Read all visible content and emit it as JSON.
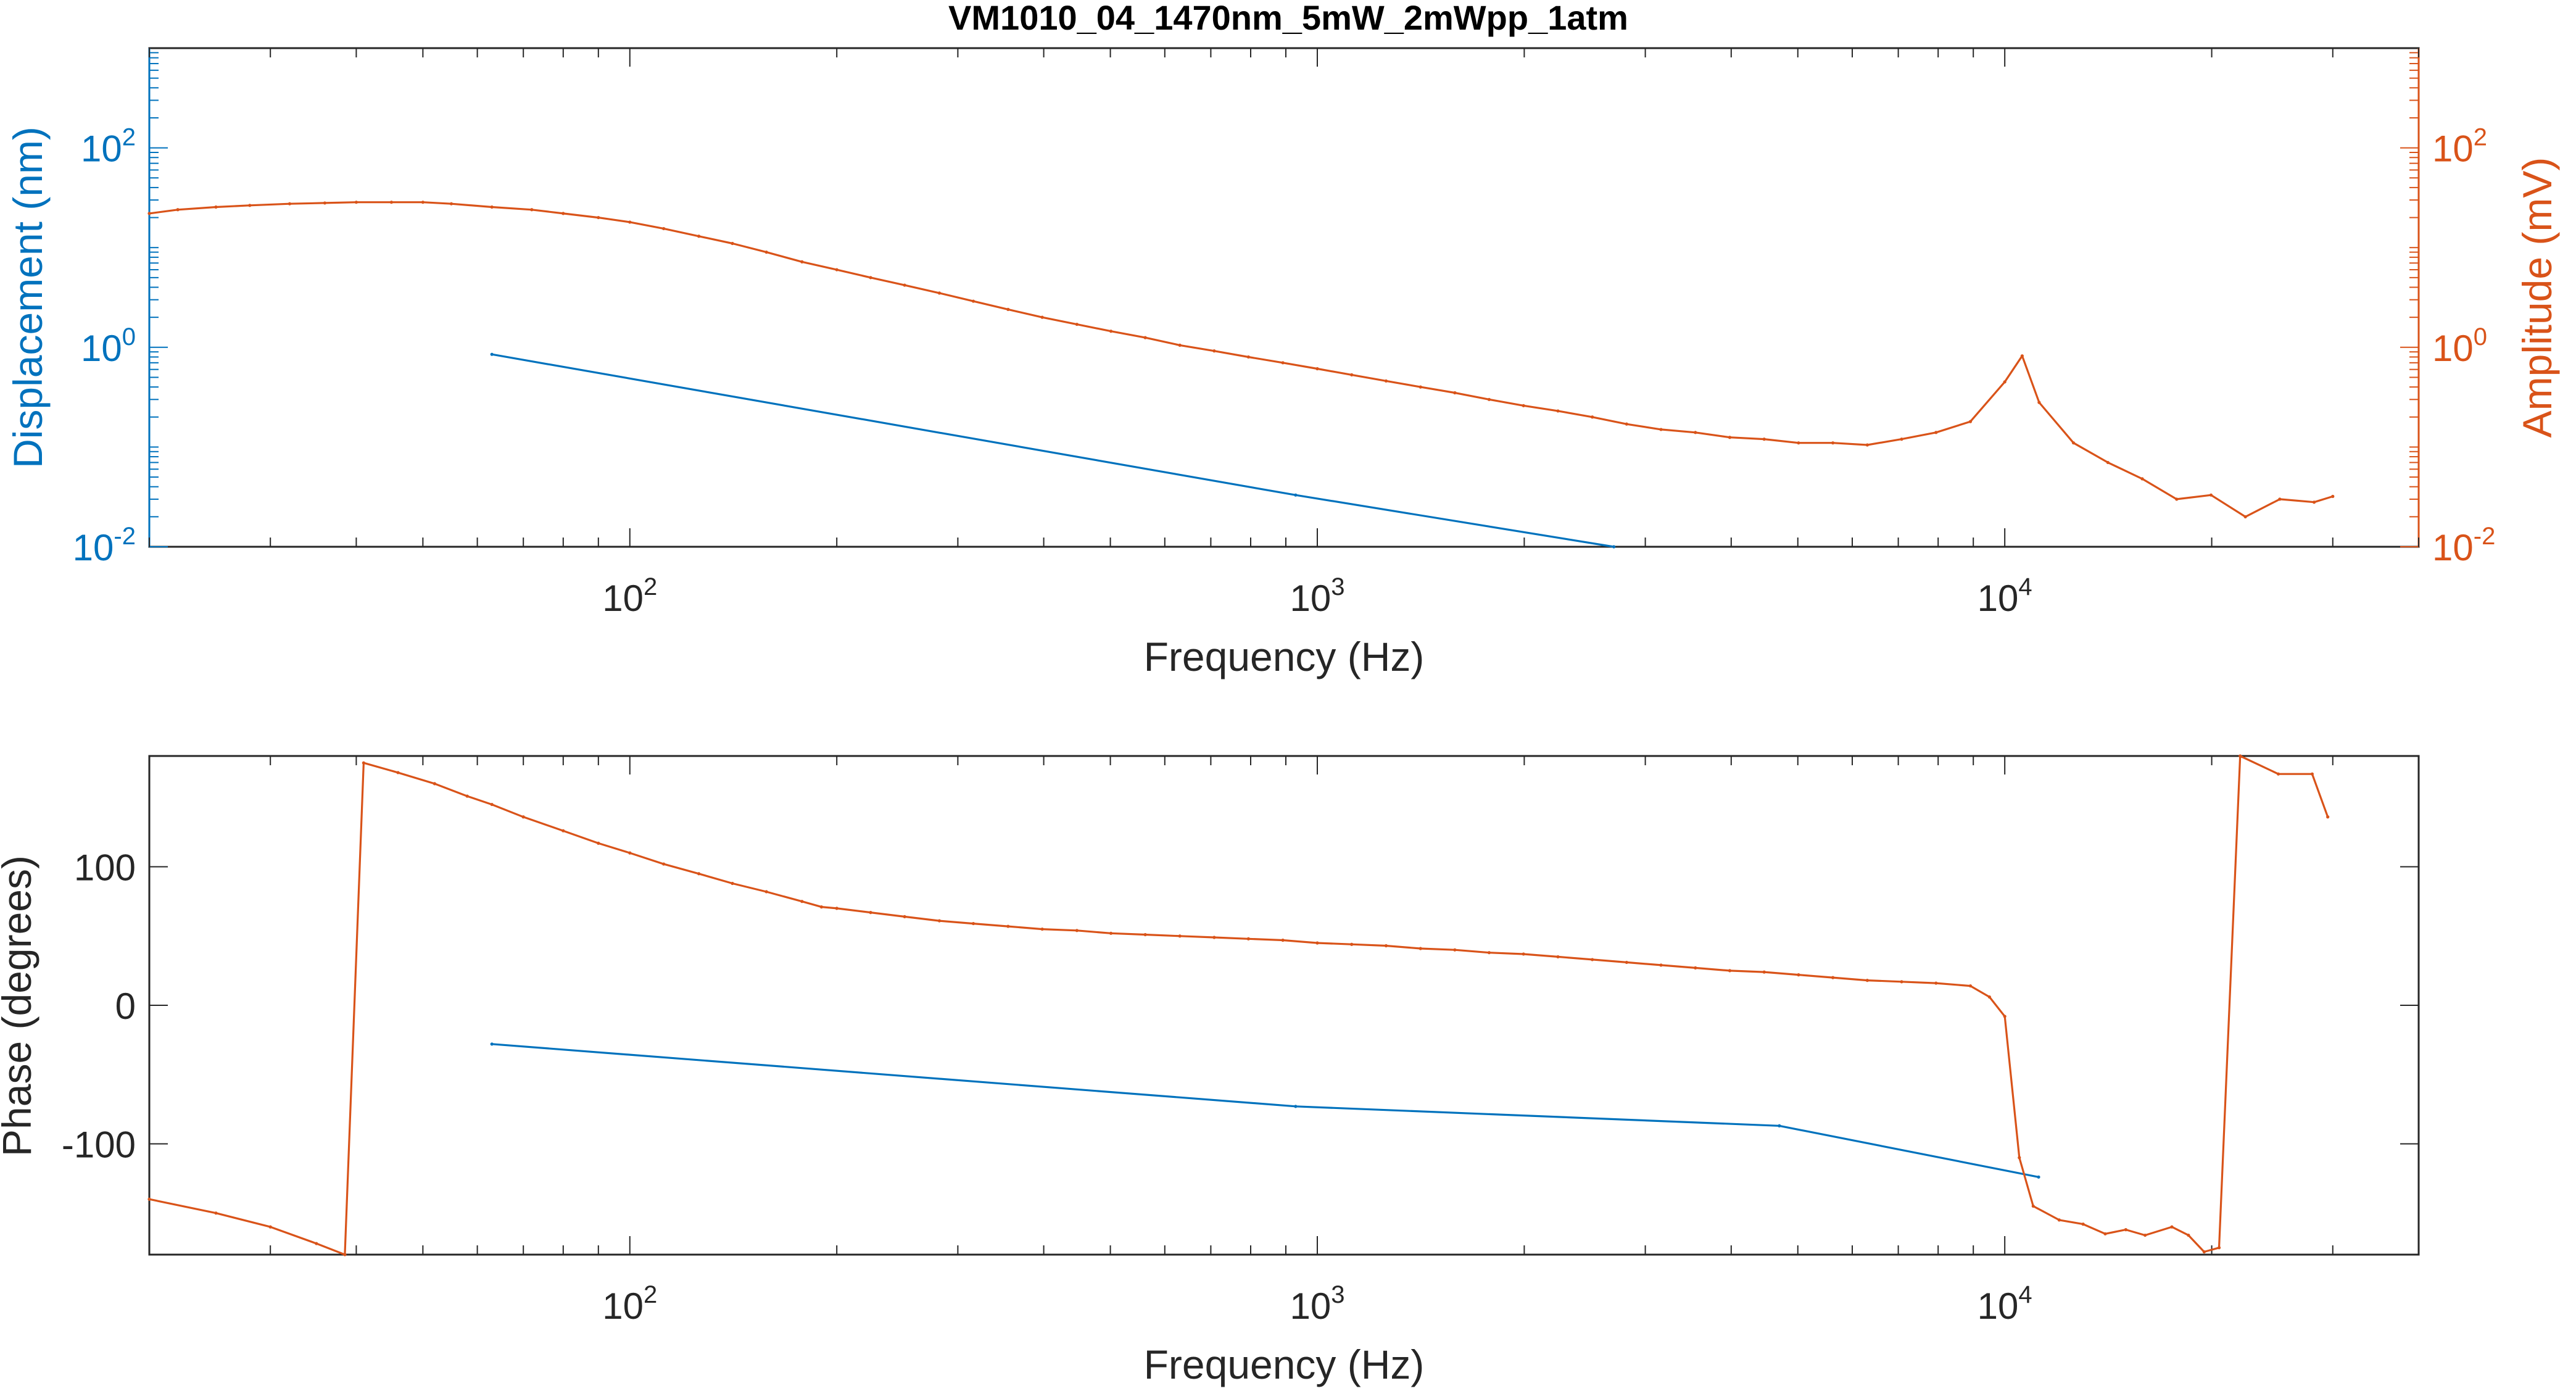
{
  "colors": {
    "blue": "#0072BD",
    "orange": "#D95319",
    "axis": "#262626"
  },
  "chart_data": [
    {
      "type": "line",
      "title": "VM1010_04_1470nm_5mW_2mWpp_1atm",
      "xlabel": "Frequency (Hz)",
      "ylabel_left": "Displacement (nm)",
      "ylabel_right": "Amplitude (mV)",
      "xscale": "log",
      "yscale": "log",
      "xlim": [
        20,
        40000
      ],
      "ylim_left": [
        0.01,
        1000
      ],
      "ylim_right": [
        0.01,
        1000
      ],
      "x_ticks": [
        100,
        1000,
        10000
      ],
      "y_ticks_left": [
        0.01,
        1,
        100
      ],
      "y_ticks_right": [
        0.01,
        1,
        100
      ],
      "grid": false,
      "series": [
        {
          "axis": "left",
          "color": "#0072BD",
          "x": [
            63,
            930,
            2700
          ],
          "y": [
            0.85,
            0.033,
            0.01
          ]
        },
        {
          "axis": "right",
          "color": "#D95319",
          "x": [
            20,
            22,
            25,
            28,
            32,
            36,
            40,
            45,
            50,
            55,
            63,
            72,
            80,
            90,
            100,
            112,
            126,
            141,
            158,
            178,
            200,
            224,
            251,
            282,
            316,
            355,
            398,
            447,
            501,
            562,
            631,
            708,
            794,
            891,
            1000,
            1122,
            1259,
            1413,
            1585,
            1778,
            1995,
            2239,
            2512,
            2818,
            3162,
            3548,
            3981,
            4467,
            5012,
            5623,
            6310,
            7079,
            7943,
            8913,
            10000,
            10600,
            11220,
            12589,
            14125,
            15849,
            17783,
            19953,
            22387,
            25119,
            28184,
            30000
          ],
          "y": [
            22,
            24,
            25.5,
            26.5,
            27.5,
            28,
            28.5,
            28.5,
            28.5,
            27.5,
            25.5,
            24,
            22,
            20,
            18,
            15.5,
            13,
            11,
            9,
            7.2,
            6,
            5,
            4.2,
            3.5,
            2.9,
            2.4,
            2,
            1.7,
            1.45,
            1.25,
            1.05,
            0.92,
            0.8,
            0.7,
            0.61,
            0.53,
            0.46,
            0.4,
            0.35,
            0.3,
            0.26,
            0.23,
            0.2,
            0.17,
            0.15,
            0.14,
            0.125,
            0.12,
            0.11,
            0.11,
            0.105,
            0.12,
            0.14,
            0.18,
            0.45,
            0.82,
            0.28,
            0.11,
            0.07,
            0.048,
            0.03,
            0.033,
            0.02,
            0.03,
            0.028,
            0.032
          ]
        }
      ]
    },
    {
      "type": "line",
      "xlabel": "Frequency (Hz)",
      "ylabel": "Phase (degrees)",
      "xscale": "log",
      "xlim": [
        20,
        40000
      ],
      "ylim": [
        -180,
        180
      ],
      "x_ticks": [
        100,
        1000,
        10000
      ],
      "y_ticks": [
        -100,
        0,
        100
      ],
      "grid": false,
      "series": [
        {
          "color": "#0072BD",
          "x": [
            63,
            930,
            4700,
            11200
          ],
          "y": [
            -28,
            -73,
            -87,
            -124
          ]
        },
        {
          "color": "#D95319",
          "x": [
            20,
            25,
            30,
            35,
            38.5,
            41,
            46,
            52,
            58,
            63,
            70,
            80,
            90,
            100,
            112,
            126,
            141,
            158,
            178,
            190,
            200,
            224,
            251,
            282,
            316,
            355,
            398,
            447,
            501,
            562,
            631,
            708,
            794,
            891,
            1000,
            1122,
            1259,
            1413,
            1585,
            1778,
            1995,
            2239,
            2512,
            2818,
            3162,
            3548,
            3981,
            4467,
            5012,
            5623,
            6310,
            7079,
            7943,
            8913,
            9500,
            10000,
            10500,
            11000,
            12000,
            13000,
            14000,
            15000,
            16000,
            17500,
            18500,
            19500,
            20500,
            22000,
            25000,
            28000,
            29500
          ],
          "y": [
            -140,
            -150,
            -160,
            -172,
            -180,
            175,
            168,
            160,
            151,
            145,
            136,
            126,
            117,
            110,
            102,
            95,
            88,
            82,
            75,
            71,
            70,
            67,
            64,
            61,
            59,
            57,
            55,
            54,
            52,
            51,
            50,
            49,
            48,
            47,
            45,
            44,
            43,
            41,
            40,
            38,
            37,
            35,
            33,
            31,
            29,
            27,
            25,
            24,
            22,
            20,
            18,
            17,
            16,
            14,
            6,
            -8,
            -110,
            -145,
            -155,
            -158,
            -165,
            -162,
            -166,
            -160,
            -166,
            -178,
            -175,
            180,
            167,
            167,
            136
          ]
        }
      ]
    }
  ]
}
